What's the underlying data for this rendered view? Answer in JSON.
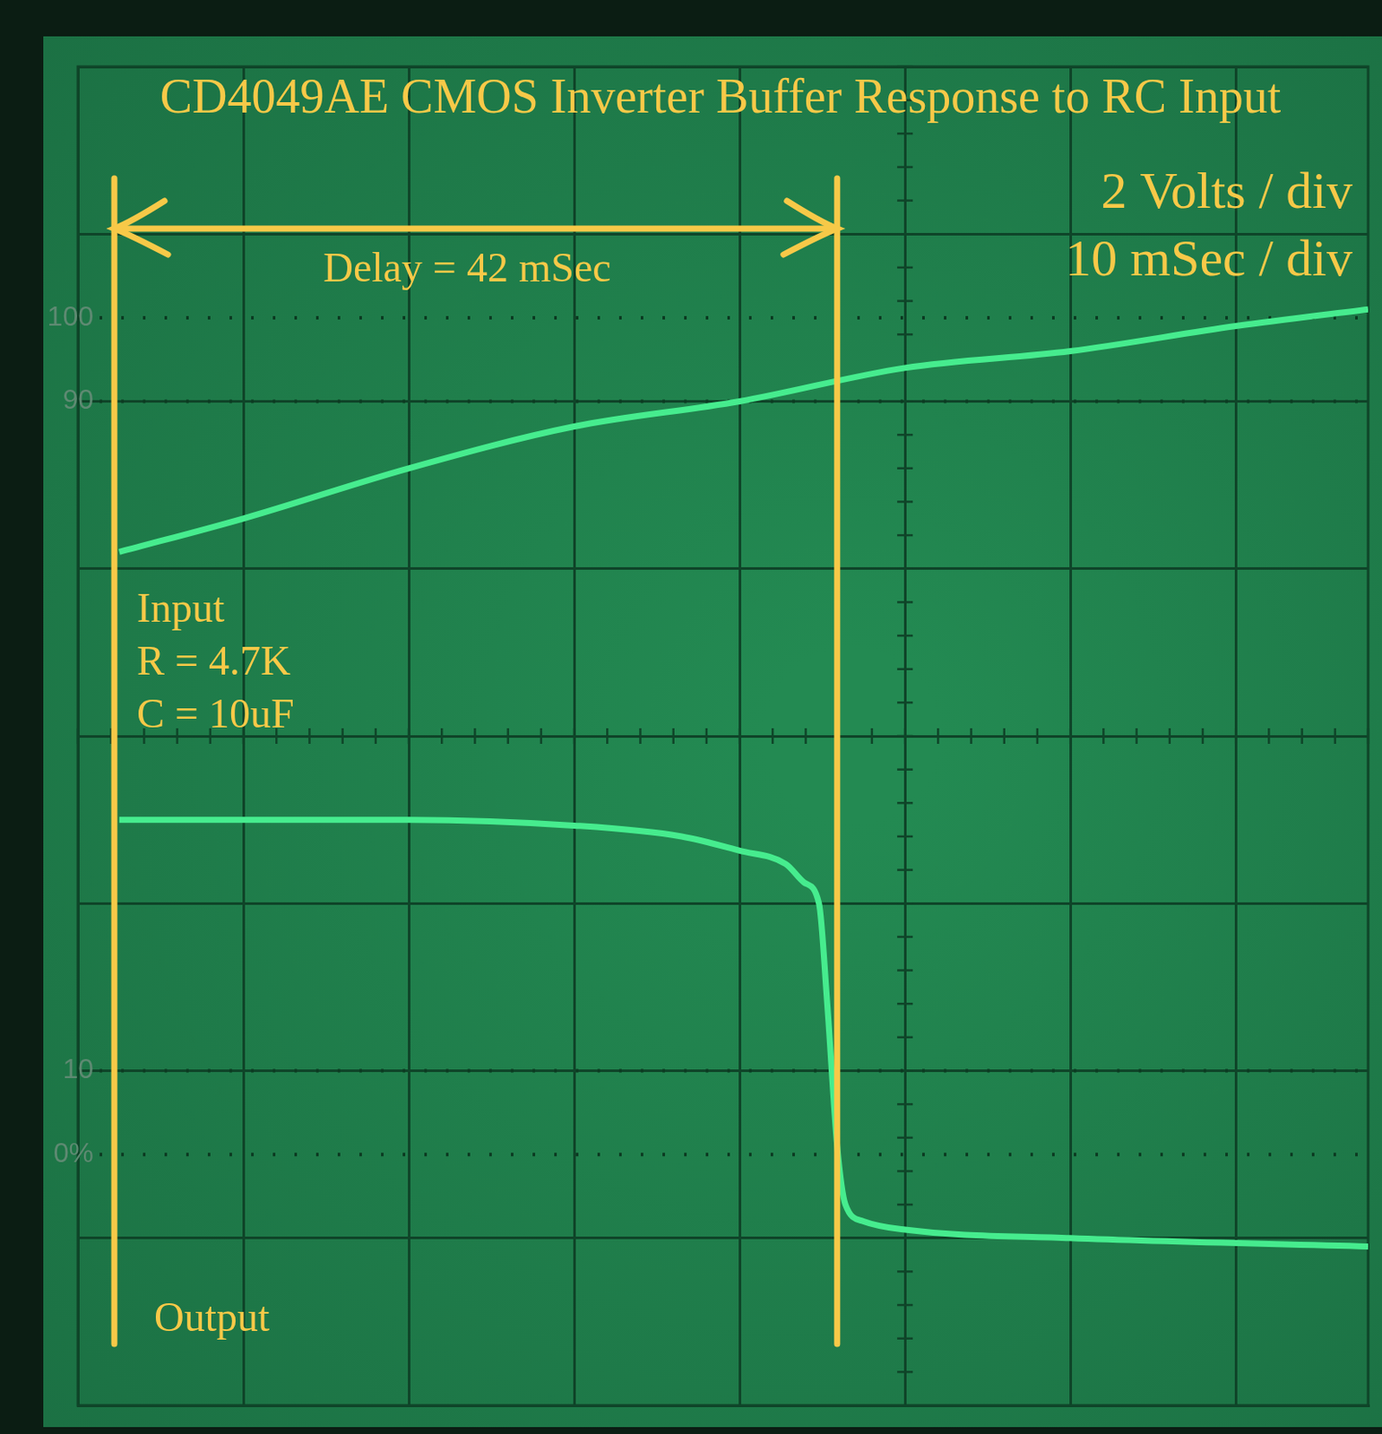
{
  "chart_data": {
    "type": "line",
    "title": "CD4049AE CMOS Inverter Buffer Response to RC Input",
    "scale_labels": [
      "2 Volts / div",
      "10 mSec / div"
    ],
    "series": [
      {
        "name": "Input",
        "notes": [
          "R = 4.7K",
          "C = 10uF"
        ],
        "color": "#46ec8e",
        "line_style": "solid",
        "x": [
          2.5,
          10,
          20,
          30,
          40,
          50,
          60,
          70,
          78
        ],
        "values": [
          2.2,
          2.6,
          3.2,
          3.7,
          4.0,
          4.4,
          4.6,
          4.9,
          5.1
        ]
      },
      {
        "name": "Output",
        "color": "#46ec8e",
        "line_style": "solid",
        "x": [
          2.5,
          20,
          30,
          36.5,
          40,
          42.8,
          43.9,
          44.8,
          45.3,
          45.9,
          46.4,
          47.5,
          50,
          60,
          78
        ],
        "values": [
          -1.0,
          -1.0,
          -1.07,
          -1.2,
          -1.37,
          -1.53,
          -1.75,
          -2.0,
          -3.2,
          -4.9,
          -5.6,
          -5.8,
          -5.9,
          -6.0,
          -6.1
        ]
      }
    ],
    "delay": {
      "label": "Delay = 42 mSec",
      "x_start": 2.2,
      "x_end": 45.9
    },
    "graticule_markers": [
      {
        "value": 5,
        "label": "100"
      },
      {
        "value": 4,
        "label": "90"
      },
      {
        "value": -4,
        "label": "10"
      },
      {
        "value": -5,
        "label": "0%"
      }
    ],
    "xlim": [
      0,
      78
    ],
    "xticks": [
      0,
      10,
      20,
      30,
      40,
      50,
      60,
      70
    ],
    "ylim": [
      -8,
      8
    ],
    "yticks": [
      -8,
      -6,
      -4,
      -2,
      0,
      2,
      4,
      6,
      8
    ],
    "grid": true,
    "tick_labels": false
  }
}
